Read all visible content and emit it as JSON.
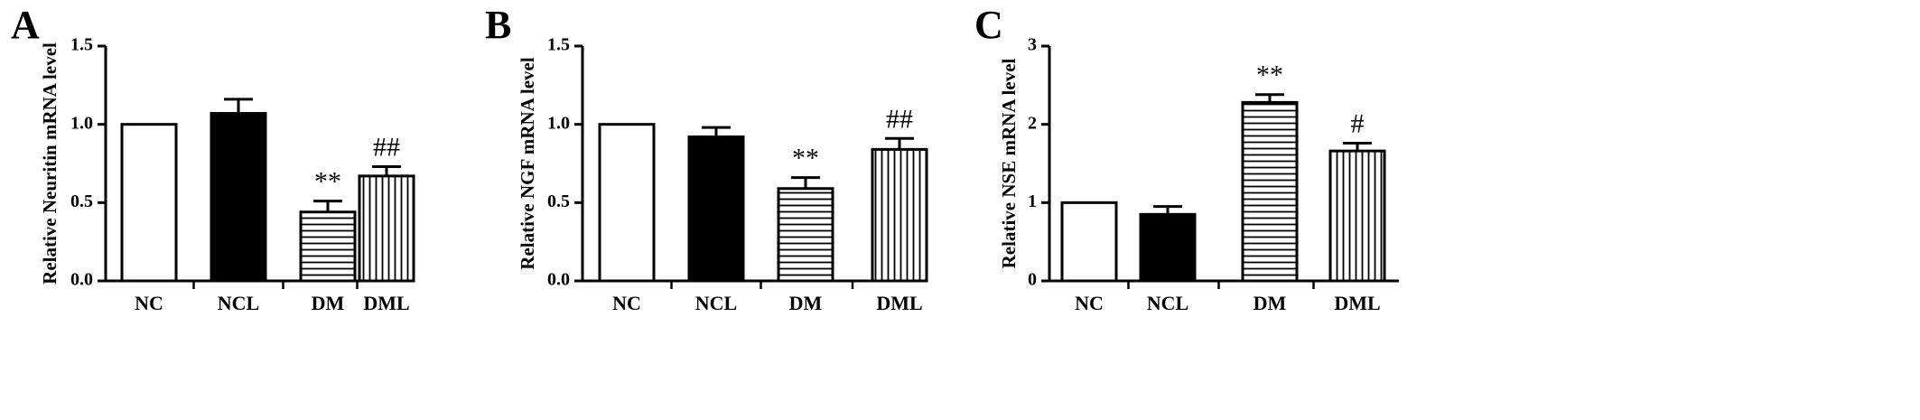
{
  "chart_data": [
    {
      "panel": "A",
      "type": "bar",
      "ylabel": "Relative Neuritin mRNA level",
      "categories": [
        "NC",
        "NCL",
        "DM",
        "DML"
      ],
      "values": [
        1.0,
        1.07,
        0.44,
        0.67
      ],
      "errors": [
        0.0,
        0.09,
        0.07,
        0.06
      ],
      "annotations": [
        "",
        "",
        "**",
        "##"
      ],
      "ylim": [
        0,
        1.5
      ],
      "yticks": [
        "0.0",
        "0.5",
        "1.0",
        "1.5"
      ],
      "fills": [
        "white",
        "black",
        "hlines",
        "vlines"
      ]
    },
    {
      "panel": "B",
      "type": "bar",
      "ylabel": "Relative NGF mRNA level",
      "categories": [
        "NC",
        "NCL",
        "DM",
        "DML"
      ],
      "values": [
        1.0,
        0.92,
        0.59,
        0.84
      ],
      "errors": [
        0.0,
        0.06,
        0.07,
        0.07
      ],
      "annotations": [
        "",
        "",
        "**",
        "##"
      ],
      "ylim": [
        0,
        1.5
      ],
      "yticks": [
        "0.0",
        "0.5",
        "1.0",
        "1.5"
      ],
      "fills": [
        "white",
        "black",
        "hlines",
        "vlines"
      ]
    },
    {
      "panel": "C",
      "type": "bar",
      "ylabel": "Relative NSE mRNA level",
      "categories": [
        "NC",
        "NCL",
        "DM",
        "DML"
      ],
      "values": [
        1.0,
        0.85,
        2.28,
        1.66
      ],
      "errors": [
        0.0,
        0.1,
        0.1,
        0.1
      ],
      "annotations": [
        "",
        "",
        "**",
        "#"
      ],
      "ylim": [
        0,
        3
      ],
      "yticks": [
        "0",
        "1",
        "2",
        "3"
      ],
      "fills": [
        "white",
        "black",
        "hlines",
        "vlines"
      ]
    }
  ]
}
